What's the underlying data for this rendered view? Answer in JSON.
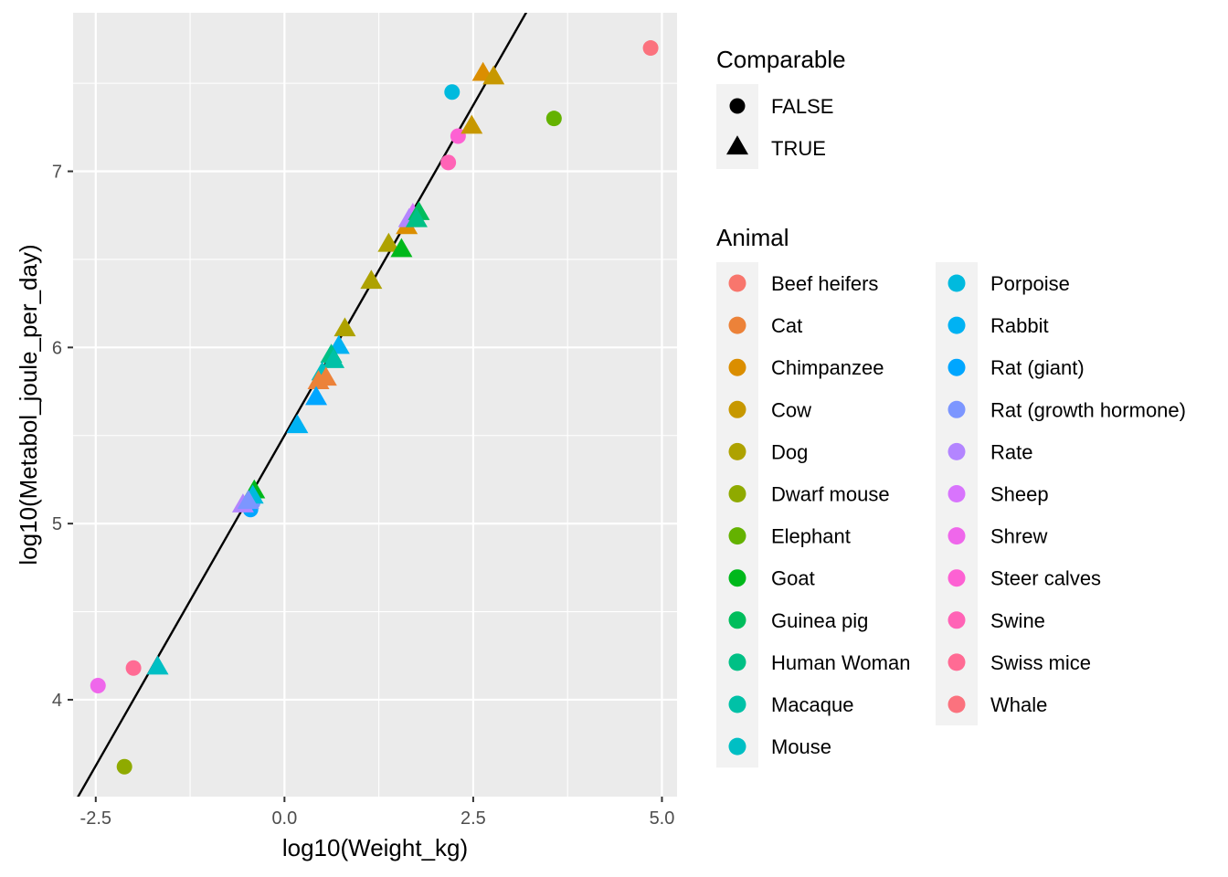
{
  "chart_data": {
    "type": "scatter",
    "title": "",
    "xlabel": "log10(Weight_kg)",
    "ylabel": "log10(Metabol_joule_per_day)",
    "xlim": [
      -2.8,
      5.2
    ],
    "ylim": [
      3.45,
      7.9
    ],
    "x_ticks": [
      -2.5,
      0.0,
      2.5,
      5.0
    ],
    "x_tick_labels": [
      "-2.5",
      "0.0",
      "2.5",
      "5.0"
    ],
    "y_ticks": [
      4,
      5,
      6,
      7
    ],
    "y_tick_labels": [
      "4",
      "5",
      "6",
      "7"
    ],
    "grid": true,
    "panel_background": "#ebebeb",
    "fit_line": {
      "intercept": 5.5,
      "slope": 0.75
    },
    "shape_legend": {
      "title": "Comparable",
      "items": [
        {
          "label": "FALSE",
          "shape": "circle"
        },
        {
          "label": "TRUE",
          "shape": "triangle"
        }
      ]
    },
    "color_legend": {
      "title": "Animal",
      "items": [
        {
          "label": "Beef heifers",
          "color": "#F8766D"
        },
        {
          "label": "Cat",
          "color": "#EC8239"
        },
        {
          "label": "Chimpanzee",
          "color": "#DB8E00"
        },
        {
          "label": "Cow",
          "color": "#C79800"
        },
        {
          "label": "Dog",
          "color": "#AEA200"
        },
        {
          "label": "Dwarf mouse",
          "color": "#8FAA00"
        },
        {
          "label": "Elephant",
          "color": "#64B200"
        },
        {
          "label": "Goat",
          "color": "#00B81B"
        },
        {
          "label": "Guinea pig",
          "color": "#00BD5C"
        },
        {
          "label": "Human Woman",
          "color": "#00C085"
        },
        {
          "label": "Macaque",
          "color": "#00C1A7"
        },
        {
          "label": "Mouse",
          "color": "#00BFC4"
        },
        {
          "label": "Porpoise",
          "color": "#00BADE"
        },
        {
          "label": "Rabbit",
          "color": "#00B2F3"
        },
        {
          "label": "Rat (giant)",
          "color": "#00A6FF"
        },
        {
          "label": "Rat (growth hormone)",
          "color": "#7C96FF"
        },
        {
          "label": "Rate",
          "color": "#B385FF"
        },
        {
          "label": "Sheep",
          "color": "#D874FD"
        },
        {
          "label": "Shrew",
          "color": "#EF67EB"
        },
        {
          "label": "Steer calves",
          "color": "#FD61D3"
        },
        {
          "label": "Swine",
          "color": "#FF63B6"
        },
        {
          "label": "Swiss mice",
          "color": "#FF6B94"
        },
        {
          "label": "Whale",
          "color": "#FB727E"
        }
      ]
    },
    "points": [
      {
        "x": 4.85,
        "y": 7.7,
        "animal": "Whale",
        "comparable": false
      },
      {
        "x": 2.22,
        "y": 7.45,
        "animal": "Porpoise",
        "comparable": false
      },
      {
        "x": 3.57,
        "y": 7.3,
        "animal": "Elephant",
        "comparable": false
      },
      {
        "x": 2.3,
        "y": 7.2,
        "animal": "Steer calves",
        "comparable": false
      },
      {
        "x": 2.17,
        "y": 7.05,
        "animal": "Swine",
        "comparable": false
      },
      {
        "x": -2.47,
        "y": 4.08,
        "animal": "Shrew",
        "comparable": false
      },
      {
        "x": -2.0,
        "y": 4.18,
        "animal": "Swiss mice",
        "comparable": false
      },
      {
        "x": -2.12,
        "y": 3.62,
        "animal": "Dwarf mouse",
        "comparable": false
      },
      {
        "x": -0.42,
        "y": 5.12,
        "animal": "Rat (growth hormone)",
        "comparable": false
      },
      {
        "x": -0.45,
        "y": 5.08,
        "animal": "Rat (giant)",
        "comparable": false
      },
      {
        "x": 2.63,
        "y": 7.55,
        "animal": "Chimpanzee",
        "comparable": true
      },
      {
        "x": 2.77,
        "y": 7.53,
        "animal": "Cow",
        "comparable": true
      },
      {
        "x": 2.48,
        "y": 7.25,
        "animal": "Cow",
        "comparable": true
      },
      {
        "x": 1.62,
        "y": 6.68,
        "animal": "Chimpanzee",
        "comparable": true
      },
      {
        "x": 1.7,
        "y": 6.75,
        "animal": "Sheep",
        "comparable": true
      },
      {
        "x": 1.65,
        "y": 6.72,
        "animal": "Rate",
        "comparable": true
      },
      {
        "x": 1.78,
        "y": 6.76,
        "animal": "Guinea pig",
        "comparable": true
      },
      {
        "x": 1.75,
        "y": 6.72,
        "animal": "Human Woman",
        "comparable": true
      },
      {
        "x": 1.38,
        "y": 6.58,
        "animal": "Dog",
        "comparable": true
      },
      {
        "x": 1.55,
        "y": 6.55,
        "animal": "Goat",
        "comparable": true
      },
      {
        "x": 1.15,
        "y": 6.37,
        "animal": "Dog",
        "comparable": true
      },
      {
        "x": 0.8,
        "y": 6.1,
        "animal": "Dog",
        "comparable": true
      },
      {
        "x": 0.72,
        "y": 6.0,
        "animal": "Rabbit",
        "comparable": true
      },
      {
        "x": 0.62,
        "y": 5.95,
        "animal": "Human Woman",
        "comparable": true
      },
      {
        "x": 0.65,
        "y": 5.92,
        "animal": "Macaque",
        "comparable": true
      },
      {
        "x": 0.5,
        "y": 5.85,
        "animal": "Mouse",
        "comparable": true
      },
      {
        "x": 0.55,
        "y": 5.82,
        "animal": "Cat",
        "comparable": true
      },
      {
        "x": 0.45,
        "y": 5.8,
        "animal": "Cat",
        "comparable": true
      },
      {
        "x": 0.42,
        "y": 5.71,
        "animal": "Rat (giant)",
        "comparable": true
      },
      {
        "x": 0.17,
        "y": 5.55,
        "animal": "Rabbit",
        "comparable": true
      },
      {
        "x": -0.4,
        "y": 5.18,
        "animal": "Goat",
        "comparable": true
      },
      {
        "x": -0.42,
        "y": 5.15,
        "animal": "Porpoise",
        "comparable": true
      },
      {
        "x": -0.55,
        "y": 5.1,
        "animal": "Rate",
        "comparable": true
      },
      {
        "x": -0.48,
        "y": 5.12,
        "animal": "Rat (growth hormone)",
        "comparable": true
      },
      {
        "x": -1.68,
        "y": 4.18,
        "animal": "Mouse",
        "comparable": true
      }
    ]
  }
}
